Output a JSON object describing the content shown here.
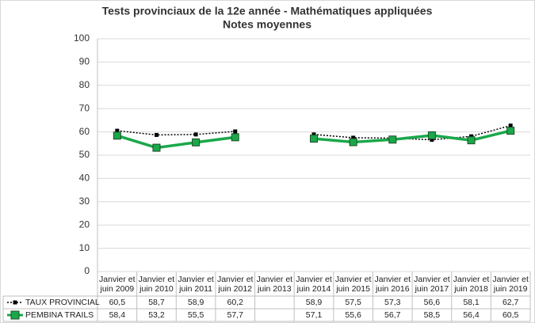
{
  "chart_data": {
    "type": "line",
    "title": "Tests provinciaux de la 12e année - Mathématiques appliquées",
    "subtitle": "Notes moyennes",
    "categories": [
      "Janvier et juin 2009",
      "Janvier et juin 2010",
      "Janvier et juin 2011",
      "Janvier et juin 2012",
      "Janvier et juin 2013",
      "Janvier et juin 2014",
      "Janvier et juin 2015",
      "Janvier et juin 2016",
      "Janvier et juin 2017",
      "Janvier et juin 2018",
      "Janvier et juin 2019"
    ],
    "series": [
      {
        "name": "TAUX PROVINCIAL",
        "color": "#000000",
        "values": [
          60.5,
          58.7,
          58.9,
          60.2,
          null,
          58.9,
          57.5,
          57.3,
          56.6,
          58.1,
          62.7
        ],
        "value_labels": [
          "60,5",
          "58,7",
          "58,9",
          "60,2",
          null,
          "58,9",
          "57,5",
          "57,3",
          "56,6",
          "58,1",
          "62,7"
        ]
      },
      {
        "name": "PEMBINA TRAILS",
        "color": "#1aa84a",
        "values": [
          58.4,
          53.2,
          55.5,
          57.7,
          null,
          57.1,
          55.6,
          56.7,
          58.5,
          56.4,
          60.5
        ],
        "value_labels": [
          "58,4",
          "53,2",
          "55,5",
          "57,7",
          null,
          "57,1",
          "55,6",
          "56,7",
          "58,5",
          "56,4",
          "60,5"
        ]
      }
    ],
    "ylim": [
      0,
      100
    ],
    "yticks": [
      0,
      10,
      20,
      30,
      40,
      50,
      60,
      70,
      80,
      90,
      100
    ],
    "grid": true
  }
}
